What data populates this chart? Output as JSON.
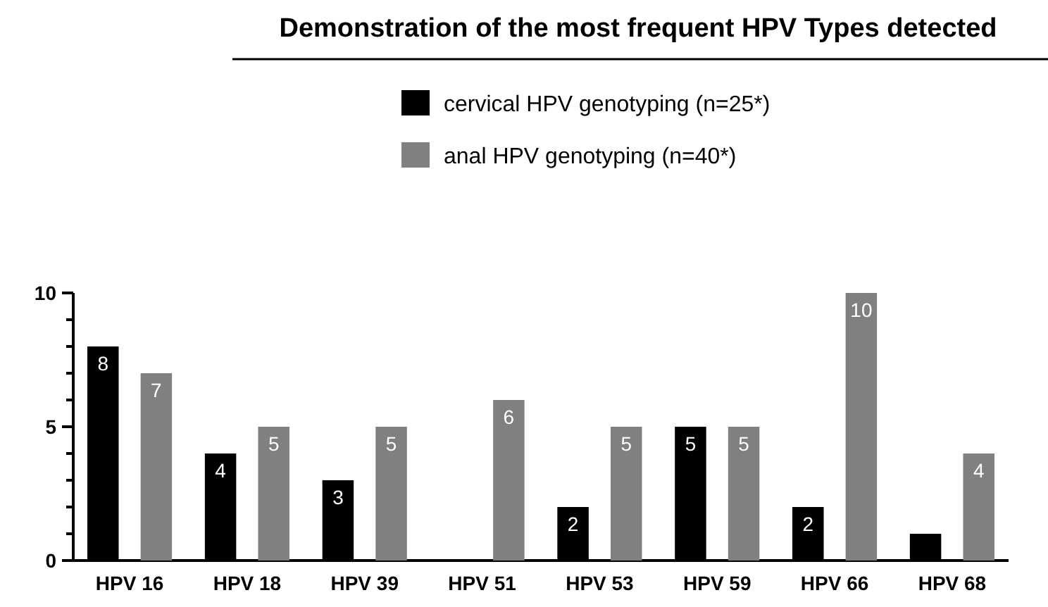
{
  "chart_data": {
    "type": "bar",
    "title": "Demonstration of the most frequent HPV Types detected",
    "categories": [
      "HPV 16",
      "HPV 18",
      "HPV 39",
      "HPV 51",
      "HPV 53",
      "HPV 59",
      "HPV 66",
      "HPV 68"
    ],
    "series": [
      {
        "name": "cervical HPV genotyping (n=25*)",
        "color": "#000000",
        "values": [
          8,
          4,
          3,
          0,
          2,
          5,
          2,
          1
        ],
        "value_labels": [
          "8",
          "4",
          "3",
          null,
          "2",
          "5",
          "2",
          null
        ]
      },
      {
        "name": "anal HPV genotyping (n=40*)",
        "color": "#808080",
        "values": [
          7,
          5,
          5,
          6,
          5,
          5,
          10,
          4
        ],
        "value_labels": [
          "7",
          "5",
          "5",
          "6",
          "5",
          "5",
          "10",
          "4"
        ]
      }
    ],
    "ylim": [
      0,
      10
    ],
    "yticks": [
      0,
      {
        "value": 1,
        "label": null
      },
      {
        "value": 2,
        "label": null
      },
      {
        "value": 3,
        "label": null
      },
      {
        "value": 4,
        "label": null
      },
      5,
      {
        "value": 6,
        "label": null
      },
      {
        "value": 7,
        "label": null
      },
      {
        "value": 8,
        "label": null
      },
      {
        "value": 9,
        "label": null
      },
      10
    ],
    "grid": false,
    "legend": "top"
  }
}
